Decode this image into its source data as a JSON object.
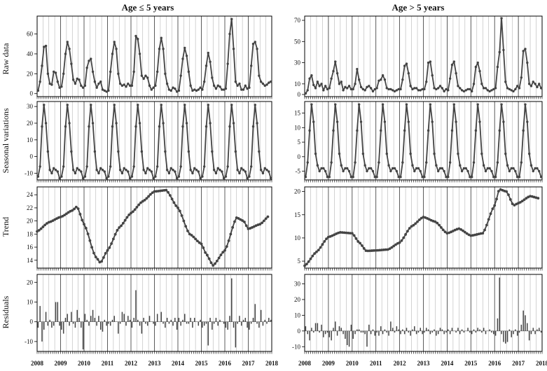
{
  "figure": {
    "columns": [
      {
        "title": "Age ≤ 5 years"
      },
      {
        "title": "Age >  5 years"
      }
    ],
    "row_labels": [
      "Raw data",
      "Seasonal variations",
      "Trend",
      "Residuals"
    ],
    "x_tick_labels": [
      "2008",
      "2009",
      "2010",
      "2011",
      "2012",
      "2013",
      "2014",
      "2015",
      "2016",
      "2017",
      "2018"
    ]
  },
  "colors": {
    "series": "#444444",
    "frame": "#000000",
    "grid": "#b5b5b5"
  },
  "chart_data": [
    {
      "type": "line",
      "group": "Age ≤ 5 years",
      "row": "Raw data",
      "ylabel": "Raw data",
      "x_start": 2008,
      "x_end": 2018,
      "ylim": [
        -3,
        78
      ],
      "yticks": [
        0,
        20,
        40,
        60
      ],
      "values": [
        3,
        12,
        28,
        47,
        48,
        20,
        10,
        9,
        22,
        21,
        12,
        6,
        7,
        20,
        40,
        52,
        45,
        30,
        14,
        10,
        15,
        14,
        8,
        6,
        8,
        26,
        33,
        35,
        22,
        12,
        6,
        10,
        12,
        4,
        3,
        2,
        3,
        22,
        40,
        52,
        45,
        20,
        10,
        8,
        9,
        7,
        10,
        8,
        8,
        22,
        58,
        55,
        40,
        18,
        15,
        18,
        16,
        8,
        4,
        6,
        8,
        22,
        45,
        56,
        45,
        20,
        10,
        4,
        3,
        6,
        5,
        2,
        3,
        18,
        35,
        46,
        38,
        22,
        8,
        3,
        4,
        3,
        4,
        6,
        4,
        12,
        28,
        41,
        32,
        16,
        8,
        5,
        8,
        7,
        4,
        4,
        5,
        30,
        60,
        75,
        45,
        12,
        8,
        10,
        4,
        4,
        8,
        5,
        6,
        28,
        50,
        52,
        45,
        18,
        12,
        10,
        8,
        9,
        11,
        12
      ]
    },
    {
      "type": "line",
      "group": "Age >  5 years",
      "row": "Raw data",
      "ylabel": "",
      "x_start": 2008,
      "x_end": 2018,
      "ylim": [
        -2,
        74
      ],
      "yticks": [
        0,
        10,
        30,
        50,
        70
      ],
      "values": [
        1,
        4,
        15,
        18,
        9,
        6,
        12,
        8,
        10,
        4,
        8,
        5,
        6,
        15,
        22,
        31,
        20,
        10,
        12,
        4,
        7,
        6,
        8,
        5,
        5,
        10,
        24,
        14,
        7,
        5,
        4,
        7,
        8,
        6,
        3,
        5,
        6,
        13,
        14,
        18,
        14,
        6,
        5,
        5,
        4,
        3,
        4,
        5,
        5,
        14,
        27,
        29,
        20,
        8,
        5,
        6,
        6,
        4,
        4,
        5,
        5,
        12,
        30,
        31,
        18,
        6,
        5,
        6,
        8,
        6,
        3,
        5,
        4,
        15,
        28,
        31,
        20,
        8,
        6,
        4,
        3,
        4,
        5,
        5,
        3,
        10,
        26,
        30,
        22,
        10,
        6,
        6,
        4,
        3,
        4,
        5,
        6,
        26,
        40,
        72,
        42,
        12,
        6,
        5,
        4,
        3,
        5,
        8,
        6,
        16,
        41,
        43,
        30,
        10,
        8,
        12,
        10,
        7,
        10,
        6
      ]
    },
    {
      "type": "line",
      "group": "Age ≤ 5 years",
      "row": "Seasonal variations",
      "ylabel": "Seasonal variations",
      "x_start": 2008,
      "x_end": 2018,
      "ylim": [
        -14,
        33
      ],
      "yticks": [
        -10,
        0,
        10,
        20,
        30
      ],
      "values": [
        -12,
        -6,
        18,
        31,
        20,
        3,
        -8,
        -10,
        -7,
        -8,
        -9,
        -13,
        -12,
        -6,
        18,
        31,
        20,
        3,
        -8,
        -10,
        -7,
        -8,
        -9,
        -13,
        -12,
        -6,
        18,
        31,
        20,
        3,
        -8,
        -10,
        -7,
        -8,
        -9,
        -13,
        -12,
        -6,
        18,
        31,
        20,
        3,
        -8,
        -10,
        -7,
        -8,
        -9,
        -13,
        -12,
        -6,
        18,
        31,
        20,
        3,
        -8,
        -10,
        -7,
        -8,
        -9,
        -13,
        -12,
        -6,
        18,
        31,
        20,
        3,
        -8,
        -10,
        -7,
        -8,
        -9,
        -13,
        -12,
        -6,
        18,
        31,
        20,
        3,
        -8,
        -10,
        -7,
        -8,
        -9,
        -13,
        -12,
        -6,
        18,
        31,
        20,
        3,
        -8,
        -10,
        -7,
        -8,
        -9,
        -13,
        -12,
        -6,
        18,
        31,
        20,
        3,
        -8,
        -10,
        -7,
        -8,
        -9,
        -13,
        -12,
        -6,
        18,
        31,
        20,
        3,
        -8,
        -10,
        -7,
        -8,
        -9,
        -13
      ]
    },
    {
      "type": "line",
      "group": "Age >  5 years",
      "row": "Seasonal variations",
      "ylabel": "",
      "x_start": 2008,
      "x_end": 2018,
      "ylim": [
        -8,
        19
      ],
      "yticks": [
        -5,
        0,
        5,
        10,
        15
      ],
      "values": [
        -7,
        -2,
        9,
        18,
        12,
        1,
        -3,
        -5,
        -4,
        -4,
        -5,
        -7,
        -7,
        -2,
        9,
        18,
        12,
        1,
        -3,
        -5,
        -4,
        -4,
        -5,
        -7,
        -7,
        -2,
        9,
        18,
        12,
        1,
        -3,
        -5,
        -4,
        -4,
        -5,
        -7,
        -7,
        -2,
        9,
        18,
        12,
        1,
        -3,
        -5,
        -4,
        -4,
        -5,
        -7,
        -7,
        -2,
        9,
        18,
        12,
        1,
        -3,
        -5,
        -4,
        -4,
        -5,
        -7,
        -7,
        -2,
        9,
        18,
        12,
        1,
        -3,
        -5,
        -4,
        -4,
        -5,
        -7,
        -7,
        -2,
        9,
        18,
        12,
        1,
        -3,
        -5,
        -4,
        -4,
        -5,
        -7,
        -7,
        -2,
        9,
        18,
        12,
        1,
        -3,
        -5,
        -4,
        -4,
        -5,
        -7,
        -7,
        -2,
        9,
        18,
        12,
        1,
        -3,
        -5,
        -4,
        -4,
        -5,
        -7,
        -7,
        -2,
        9,
        18,
        12,
        1,
        -3,
        -5,
        -4,
        -4,
        -5,
        -7
      ]
    },
    {
      "type": "line",
      "group": "Age ≤ 5 years",
      "row": "Trend",
      "ylabel": "Trend",
      "x_start": 2008,
      "x_end": 2018,
      "ylim": [
        12.8,
        25.2
      ],
      "yticks": [
        14,
        16,
        18,
        20,
        22,
        24
      ],
      "x_knots": [
        2008.0,
        2008.5,
        2009.0,
        2009.5,
        2009.7,
        2010.0,
        2010.5,
        2010.7,
        2011.0,
        2011.5,
        2012.0,
        2012.5,
        2013.0,
        2013.5,
        2014.0,
        2014.5,
        2015.0,
        2015.2,
        2015.5,
        2016.0,
        2016.5,
        2016.8,
        2017.0,
        2017.5,
        2017.9
      ],
      "y_knots": [
        18.4,
        19.8,
        20.6,
        21.6,
        22.2,
        19.5,
        14.5,
        13.6,
        15.5,
        19.0,
        21.2,
        23.0,
        24.5,
        24.7,
        22.0,
        18.0,
        16.5,
        15.0,
        13.2,
        15.5,
        20.5,
        20.0,
        18.8,
        19.5,
        20.8
      ]
    },
    {
      "type": "line",
      "group": "Age >  5 years",
      "row": "Trend",
      "ylabel": "",
      "x_start": 2008,
      "x_end": 2018,
      "ylim": [
        3.5,
        21
      ],
      "yticks": [
        5,
        10,
        15,
        20
      ],
      "x_knots": [
        2008.0,
        2008.5,
        2009.0,
        2009.5,
        2010.0,
        2010.3,
        2010.6,
        2011.0,
        2011.5,
        2012.0,
        2012.5,
        2013.0,
        2013.5,
        2014.0,
        2014.5,
        2015.0,
        2015.5,
        2016.0,
        2016.2,
        2016.5,
        2016.8,
        2017.0,
        2017.5,
        2017.9
      ],
      "y_knots": [
        4.0,
        7.0,
        10.2,
        11.2,
        11.0,
        9.0,
        7.2,
        7.3,
        7.5,
        9.0,
        12.5,
        14.5,
        13.5,
        11.0,
        12.0,
        10.5,
        11.0,
        17.0,
        20.5,
        20.0,
        17.0,
        17.5,
        19.0,
        18.5
      ]
    },
    {
      "type": "bar",
      "group": "Age ≤ 5 years",
      "row": "Residuals",
      "ylabel": "Residuals",
      "x_start": 2008,
      "x_end": 2018,
      "ylim": [
        -15,
        24
      ],
      "yticks": [
        -10,
        0,
        10,
        20
      ],
      "values": [
        -3,
        8,
        -10,
        -4,
        5,
        -2,
        1,
        -3,
        -2,
        10,
        10,
        -2,
        -4,
        -6,
        2,
        4,
        -2,
        5,
        -1,
        -3,
        6,
        2,
        -3,
        -14,
        4,
        1,
        -2,
        3,
        6,
        2,
        -2,
        3,
        -4,
        -5,
        1,
        -2,
        -1,
        -2,
        1,
        3,
        0,
        -6,
        -1,
        5,
        4,
        -2,
        3,
        1,
        -3,
        2,
        16,
        1,
        -2,
        -6,
        2,
        -1,
        -2,
        3,
        0,
        -1,
        -2,
        4,
        0,
        5,
        -1,
        -3,
        2,
        -1,
        1,
        -2,
        2,
        -4,
        2,
        -2,
        1,
        4,
        -1,
        -1,
        2,
        -3,
        2,
        0,
        -2,
        1,
        -3,
        -2,
        -1,
        -12,
        2,
        -4,
        -1,
        2,
        -2,
        1,
        0,
        -1,
        -3,
        -4,
        3,
        22,
        -3,
        -13,
        -1,
        3,
        -2,
        1,
        2,
        -3,
        -4,
        -1,
        2,
        9,
        -1,
        -3,
        6,
        -2,
        1,
        -1,
        2,
        1
      ]
    },
    {
      "type": "bar",
      "group": "Age >  5 years",
      "row": "Residuals",
      "ylabel": "",
      "x_start": 2008,
      "x_end": 2018,
      "ylim": [
        -13,
        36
      ],
      "yticks": [
        -10,
        0,
        10,
        20,
        30
      ],
      "values": [
        3,
        -2,
        -6,
        2,
        -1,
        5,
        5,
        -1,
        4,
        -4,
        -2,
        -1,
        -4,
        -6,
        2,
        6,
        -3,
        3,
        2,
        -2,
        -5,
        -9,
        -10,
        4,
        -5,
        -2,
        1,
        1,
        -1,
        -1,
        -2,
        -10,
        4,
        -2,
        1,
        -3,
        -1,
        -3,
        3,
        -2,
        1,
        -1,
        -3,
        6,
        2,
        -1,
        3,
        1,
        -2,
        1,
        -2,
        2,
        -1,
        -3,
        1,
        3,
        -2,
        -1,
        2,
        -2,
        -1,
        2,
        1,
        -2,
        -1,
        1,
        -3,
        -2,
        2,
        1,
        -2,
        -1,
        1,
        -2,
        2,
        0,
        -1,
        2,
        -2,
        1,
        -1,
        0,
        2,
        -1,
        -2,
        1,
        -1,
        2,
        1,
        -1,
        2,
        -2,
        0,
        1,
        -1,
        -2,
        -3,
        8,
        34,
        -2,
        -7,
        -8,
        -7,
        1,
        -4,
        -2,
        1,
        -3,
        -1,
        4,
        13,
        10,
        5,
        -6,
        -2,
        2,
        -2,
        1,
        2,
        -1
      ]
    }
  ]
}
